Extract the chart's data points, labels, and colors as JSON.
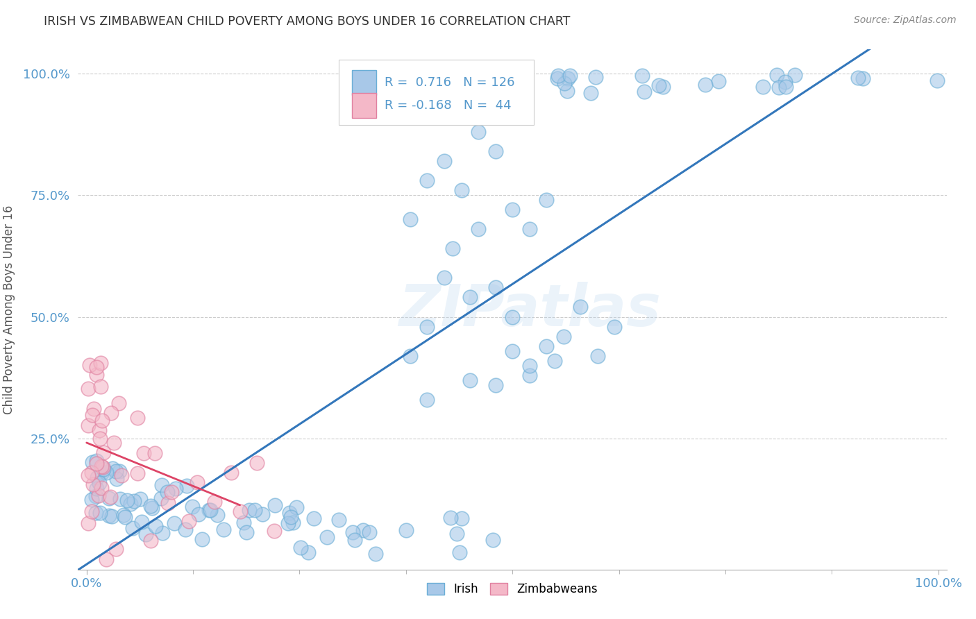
{
  "title": "IRISH VS ZIMBABWEAN CHILD POVERTY AMONG BOYS UNDER 16 CORRELATION CHART",
  "source": "Source: ZipAtlas.com",
  "ylabel": "Child Poverty Among Boys Under 16",
  "watermark": "ZIPatlas",
  "legend_irish_R": "0.716",
  "legend_irish_N": "126",
  "legend_zim_R": "-0.168",
  "legend_zim_N": "44",
  "irish_color": "#a8c8e8",
  "irish_edge": "#6aaed6",
  "zim_color": "#f4b8c8",
  "zim_edge": "#e080a0",
  "regression_irish_color": "#3377bb",
  "regression_zim_color": "#dd4466",
  "background_color": "#ffffff",
  "grid_color": "#cccccc",
  "title_color": "#333333",
  "tick_color": "#5599cc",
  "axis_label_color": "#5599cc"
}
